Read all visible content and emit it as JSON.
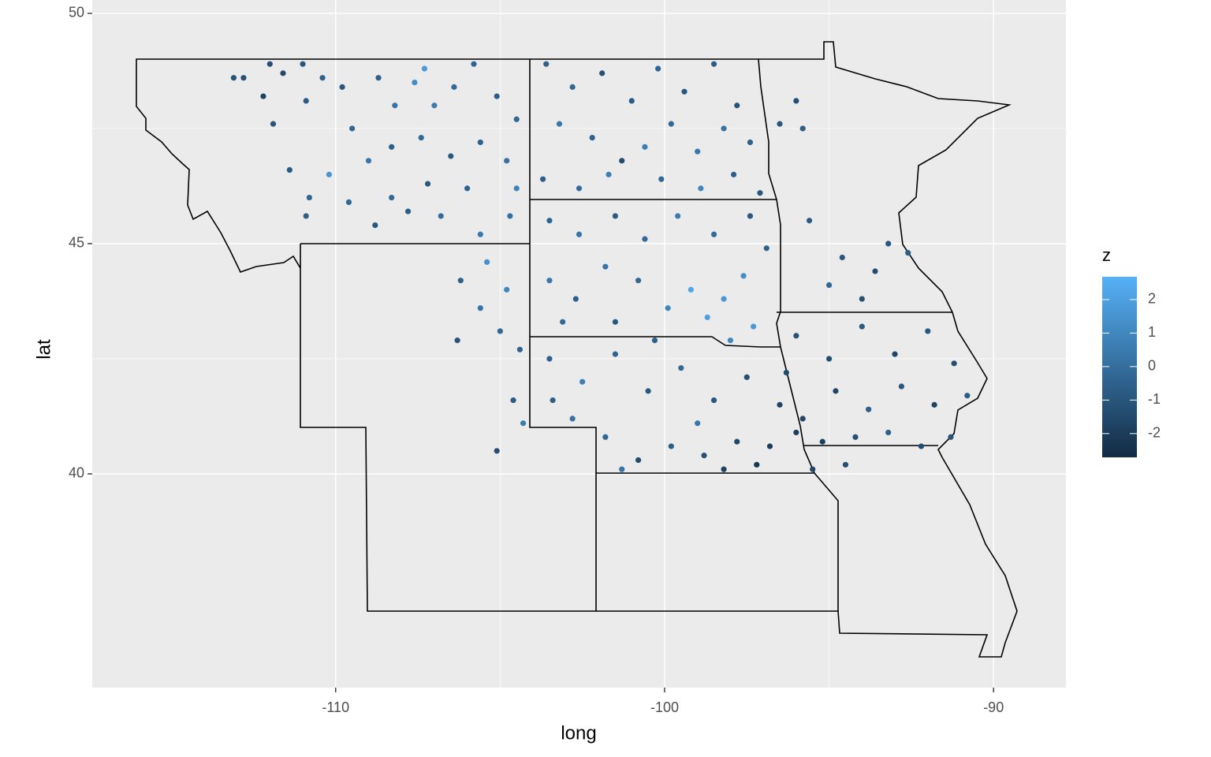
{
  "chart_data": {
    "type": "scatter",
    "x_label": "long",
    "y_label": "lat",
    "xlim": [
      -117.4,
      -87.8
    ],
    "ylim": [
      35.36,
      50.29
    ],
    "xticks": [
      -110,
      -100,
      -90
    ],
    "yticks": [
      40,
      45,
      50
    ],
    "grid": true,
    "legend_title": "z",
    "zlim": [
      -2.71,
      2.68
    ],
    "zticks": [
      -2,
      -1,
      0,
      1,
      2
    ],
    "low_color": "#132B43",
    "high_color": "#56B1F7",
    "x": [
      -112.8,
      -112.2,
      -111.6,
      -111.9,
      -110.9,
      -110.4,
      -109.8,
      -109.5,
      -108.7,
      -108.2,
      -107.6,
      -107.3,
      -107.0,
      -106.4,
      -105.8,
      -105.1,
      -104.5,
      -104.8,
      -105.6,
      -106.5,
      -107.4,
      -108.3,
      -109.0,
      -110.2,
      -110.8,
      -111.4,
      -110.9,
      -109.6,
      -108.8,
      -107.8,
      -106.8,
      -105.6,
      -104.7,
      -104.5,
      -106.0,
      -107.2,
      -108.3,
      -112.0,
      -113.1,
      -111.0,
      -106.2,
      -105.6,
      -104.8,
      -105.0,
      -106.3,
      -104.4,
      -104.6,
      -105.1,
      -104.3,
      -105.4,
      -103.6,
      -102.8,
      -101.9,
      -101.0,
      -100.2,
      -99.4,
      -98.5,
      -97.8,
      -97.4,
      -98.2,
      -99.0,
      -99.8,
      -100.6,
      -101.3,
      -102.2,
      -103.2,
      -103.7,
      -102.6,
      -101.7,
      -100.1,
      -98.9,
      -97.9,
      -97.1,
      -96.5,
      -96.0,
      -95.8,
      -103.5,
      -102.6,
      -101.5,
      -100.6,
      -99.6,
      -98.5,
      -97.4,
      -96.9,
      -97.6,
      -98.2,
      -99.2,
      -98.7,
      -99.9,
      -100.8,
      -101.8,
      -102.7,
      -103.5,
      -103.1,
      -101.5,
      -100.3,
      -97.3,
      -98.0,
      -103.5,
      -102.5,
      -101.5,
      -100.5,
      -99.5,
      -98.5,
      -97.5,
      -96.5,
      -96.8,
      -97.8,
      -98.8,
      -99.8,
      -100.8,
      -101.8,
      -102.8,
      -103.4,
      -97.2,
      -96.0,
      -96.3,
      -99.0,
      -98.2,
      -101.3,
      -95.6,
      -94.6,
      -93.6,
      -92.6,
      -94.0,
      -95.0,
      -93.2,
      -96.0,
      -95.0,
      -94.0,
      -93.0,
      -92.0,
      -91.2,
      -90.8,
      -91.8,
      -92.8,
      -93.8,
      -94.8,
      -95.8,
      -95.2,
      -94.2,
      -93.2,
      -92.2,
      -91.3,
      -95.5,
      -94.5
    ],
    "y": [
      48.6,
      48.2,
      48.7,
      47.6,
      48.1,
      48.6,
      48.4,
      47.5,
      48.6,
      48.0,
      48.5,
      48.8,
      48.0,
      48.4,
      48.9,
      48.2,
      47.7,
      46.8,
      47.2,
      46.9,
      47.3,
      47.1,
      46.8,
      46.5,
      46.0,
      46.6,
      45.6,
      45.9,
      45.4,
      45.7,
      45.6,
      45.2,
      45.6,
      46.2,
      46.2,
      46.3,
      46.0,
      48.9,
      48.6,
      48.9,
      44.2,
      43.6,
      44.0,
      43.1,
      42.9,
      42.7,
      41.6,
      40.5,
      41.1,
      44.6,
      48.9,
      48.4,
      48.7,
      48.1,
      48.8,
      48.3,
      48.9,
      48.0,
      47.2,
      47.5,
      47.0,
      47.6,
      47.1,
      46.8,
      47.3,
      47.6,
      46.4,
      46.2,
      46.5,
      46.4,
      46.2,
      46.5,
      46.1,
      47.6,
      48.1,
      47.5,
      45.5,
      45.2,
      45.6,
      45.1,
      45.6,
      45.2,
      45.6,
      44.9,
      44.3,
      43.8,
      44.0,
      43.4,
      43.6,
      44.2,
      44.5,
      43.8,
      44.2,
      43.3,
      43.3,
      42.9,
      43.2,
      42.9,
      42.5,
      42.0,
      42.6,
      41.8,
      42.3,
      41.6,
      42.1,
      41.5,
      40.6,
      40.7,
      40.4,
      40.6,
      40.3,
      40.8,
      41.2,
      41.6,
      40.2,
      40.9,
      42.2,
      41.1,
      40.1,
      40.1,
      45.5,
      44.7,
      44.4,
      44.8,
      43.8,
      44.1,
      45.0,
      43.0,
      42.5,
      43.2,
      42.6,
      43.1,
      42.4,
      41.7,
      41.5,
      41.9,
      41.4,
      41.8,
      41.2,
      40.7,
      40.8,
      40.9,
      40.6,
      40.8,
      40.1,
      40.2
    ],
    "z": [
      -1.2,
      -1.8,
      -1.5,
      -1.0,
      -0.8,
      -0.5,
      -0.9,
      -0.3,
      -0.6,
      0.2,
      1.2,
      1.8,
      0.5,
      -0.2,
      -0.4,
      -0.7,
      -0.3,
      0.1,
      -0.5,
      -0.9,
      -0.2,
      -0.6,
      0.3,
      1.5,
      -0.4,
      -0.8,
      -0.6,
      -0.3,
      -1.0,
      -0.7,
      -0.1,
      0.4,
      0.0,
      0.8,
      -0.4,
      -0.9,
      -0.2,
      -1.3,
      -1.1,
      -0.9,
      -0.5,
      0.2,
      0.9,
      -0.3,
      -1.1,
      -0.4,
      -0.8,
      -1.3,
      0.5,
      1.4,
      -0.6,
      -0.3,
      -1.2,
      -0.8,
      -0.4,
      -1.0,
      -0.7,
      -1.1,
      -0.5,
      0.1,
      0.4,
      -0.2,
      0.6,
      -1.4,
      -0.5,
      0.3,
      -0.6,
      -0.1,
      0.7,
      -0.3,
      1.0,
      -0.6,
      -0.9,
      -1.0,
      -1.3,
      -0.7,
      -0.4,
      0.3,
      -0.8,
      -0.2,
      0.5,
      -0.1,
      -0.9,
      -0.5,
      1.3,
      1.6,
      2.2,
      2.0,
      0.9,
      -0.3,
      0.2,
      -0.6,
      0.4,
      -0.2,
      -0.9,
      -0.5,
      1.7,
      1.0,
      -0.5,
      0.7,
      -0.4,
      -0.9,
      -0.2,
      -1.0,
      -1.3,
      -1.7,
      -2.0,
      -1.6,
      -1.2,
      -0.7,
      -1.4,
      -0.3,
      0.1,
      -0.6,
      -2.3,
      -1.9,
      -1.5,
      0.3,
      -1.8,
      0.2,
      -0.8,
      -1.0,
      -1.4,
      -0.6,
      -1.2,
      -0.3,
      -0.9,
      -1.1,
      -1.4,
      -0.8,
      -1.6,
      -0.9,
      -1.3,
      -0.7,
      -1.8,
      -1.0,
      -0.6,
      -1.7,
      -1.5,
      -1.9,
      -1.2,
      -0.5,
      -1.4,
      -1.1,
      -1.6,
      -1.3
    ]
  }
}
